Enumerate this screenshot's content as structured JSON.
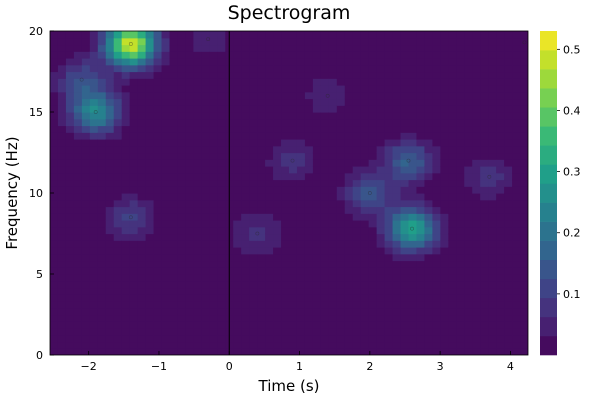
{
  "chart_data": {
    "type": "heatmap",
    "title": "Spectrogram",
    "xlabel": "Time (s)",
    "ylabel": "Frequency (Hz)",
    "xlim": [
      -2.55,
      4.25
    ],
    "ylim": [
      0,
      20
    ],
    "x_ticks": [
      -2,
      -1,
      0,
      1,
      2,
      3,
      4
    ],
    "x_tick_labels": [
      "−2",
      "−1",
      "0",
      "1",
      "2",
      "3",
      "4"
    ],
    "y_ticks": [
      0,
      5,
      10,
      15,
      20
    ],
    "y_tick_labels": [
      "0",
      "5",
      "10",
      "15",
      "20"
    ],
    "colorbar": {
      "min": 0,
      "max": 0.53,
      "ticks": [
        0.1,
        0.2,
        0.3,
        0.4,
        0.5
      ],
      "tick_labels": [
        "0.1",
        "0.2",
        "0.3",
        "0.4",
        "0.5"
      ],
      "colormap": "viridis",
      "levels": 17
    },
    "grid": false,
    "vertical_marker": {
      "x": 0,
      "color": "#000000"
    },
    "background_value": 0.0,
    "peaks": [
      {
        "x": -1.4,
        "y": 19.2,
        "value": 0.5
      },
      {
        "x": -1.9,
        "y": 15.0,
        "value": 0.25
      },
      {
        "x": -2.1,
        "y": 17.0,
        "value": 0.12
      },
      {
        "x": -1.4,
        "y": 8.5,
        "value": 0.1
      },
      {
        "x": -0.3,
        "y": 19.5,
        "value": 0.05
      },
      {
        "x": 0.4,
        "y": 7.5,
        "value": 0.08
      },
      {
        "x": 0.9,
        "y": 12.0,
        "value": 0.08
      },
      {
        "x": 1.4,
        "y": 16.0,
        "value": 0.06
      },
      {
        "x": 2.0,
        "y": 10.0,
        "value": 0.14
      },
      {
        "x": 2.55,
        "y": 12.0,
        "value": 0.16
      },
      {
        "x": 2.6,
        "y": 7.8,
        "value": 0.3
      },
      {
        "x": 3.7,
        "y": 11.0,
        "value": 0.08
      },
      {
        "x": 4.2,
        "y": 19.3,
        "value": 0.03
      }
    ]
  }
}
